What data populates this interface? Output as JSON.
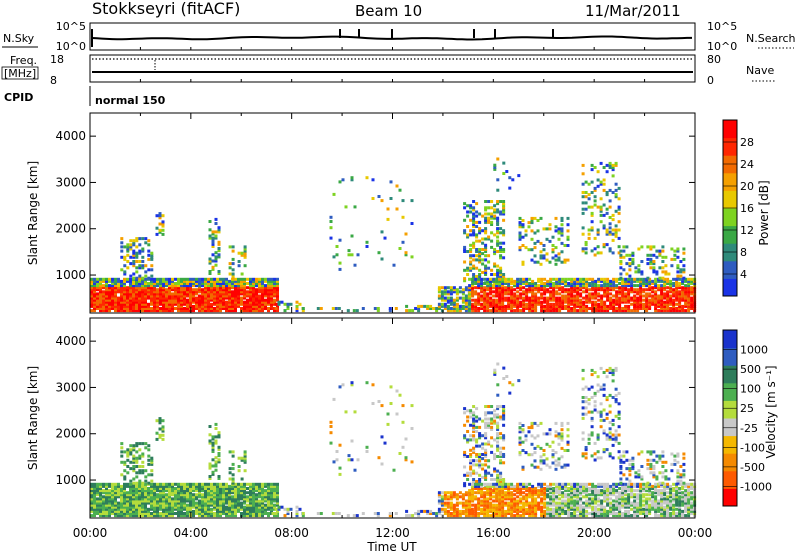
{
  "header": {
    "station": "Stokkseyri (fitACF)",
    "beam": "Beam 10",
    "date": "11/Mar/2011"
  },
  "noise_panel": {
    "left_label": "N.Sky",
    "left_ticks": [
      "10^5",
      "10^0"
    ],
    "right_ticks": [
      "10^5",
      "10^0"
    ],
    "right_label": "N.Search"
  },
  "freq_panel": {
    "left_label_line1": "Freq.",
    "left_label_line2": "[MHz]",
    "left_ticks": [
      "18",
      "8"
    ],
    "right_ticks": [
      "80",
      "0"
    ],
    "right_label": "Nave"
  },
  "cpid": {
    "label": "CPID",
    "value": "normal 150"
  },
  "colors": {
    "power": [
      "#1a33e6",
      "#2e5cc0",
      "#2e8a7a",
      "#3aa845",
      "#7ed321",
      "#e8c800",
      "#f5a000",
      "#f26a00",
      "#ff2600",
      "#ff0000"
    ],
    "velocity": [
      "#ff0000",
      "#ff5a00",
      "#f58a00",
      "#f5b800",
      "#c8c8c8",
      "#b4dc3c",
      "#4caf50",
      "#2e7d5b",
      "#2e5cc0",
      "#1a33cc"
    ]
  },
  "chart_data": [
    {
      "type": "heatmap",
      "name": "power",
      "ylabel": "Slant Range [km]",
      "ylim": [
        180,
        4500
      ],
      "xlim_hours": [
        0,
        24
      ],
      "yticks": [
        "4000",
        "3000",
        "2000",
        "1000"
      ],
      "colorbar_label": "Power [dB]",
      "colorbar_ticks": [
        "28",
        "24",
        "20",
        "16",
        "12",
        "8",
        "4"
      ],
      "grid": false
    },
    {
      "type": "heatmap",
      "name": "velocity",
      "ylabel": "Slant Range [km]",
      "xlabel": "Time UT",
      "ylim": [
        180,
        4500
      ],
      "xlim_hours": [
        0,
        24
      ],
      "xticks": [
        "00:00",
        "04:00",
        "08:00",
        "12:00",
        "16:00",
        "20:00",
        "00:00"
      ],
      "yticks": [
        "4000",
        "3000",
        "2000",
        "1000"
      ],
      "colorbar_label": "Velocity [m s⁻¹]",
      "colorbar_ticks": [
        "1000",
        "500",
        "100",
        "25",
        "-25",
        "-100",
        "-500",
        "-1000"
      ],
      "grid": false
    }
  ]
}
